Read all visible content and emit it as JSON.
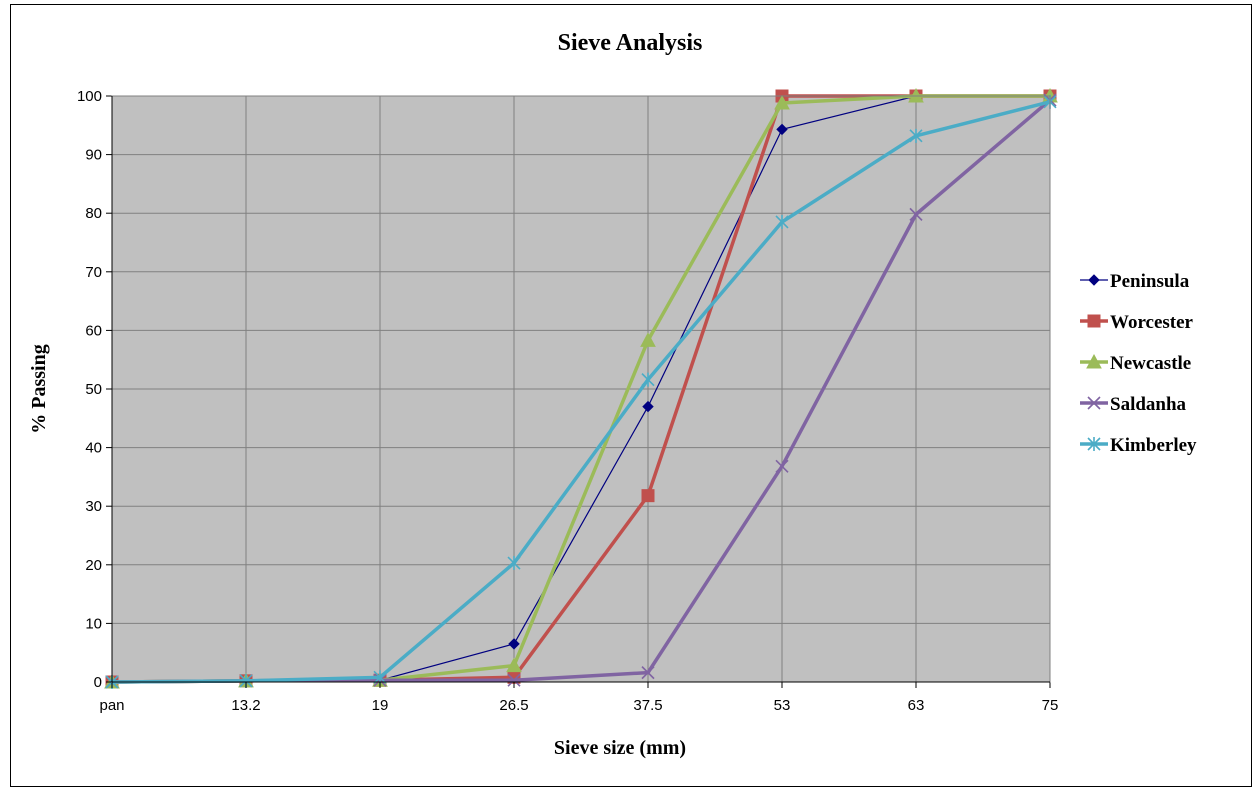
{
  "chart_data": {
    "type": "line",
    "title": "Sieve Analysis",
    "xlabel": "Sieve size (mm)",
    "ylabel": "% Passing",
    "categories": [
      "pan",
      "13.2",
      "19",
      "26.5",
      "37.5",
      "53",
      "63",
      "75"
    ],
    "ylim": [
      0,
      100
    ],
    "yticks": [
      0,
      10,
      20,
      30,
      40,
      50,
      60,
      70,
      80,
      90,
      100
    ],
    "grid": true,
    "legend_position": "right",
    "plot_background": "#C0C0C0",
    "series": [
      {
        "name": "Peninsula",
        "color": "#000080",
        "marker": "diamond",
        "values": [
          0,
          0.2,
          0.3,
          6.5,
          47,
          94.3,
          100,
          100
        ]
      },
      {
        "name": "Worcester",
        "color": "#C0504D",
        "marker": "square",
        "values": [
          0,
          0.2,
          0.3,
          0.8,
          31.8,
          100,
          100,
          100
        ]
      },
      {
        "name": "Newcastle",
        "color": "#9BBB59",
        "marker": "triangle",
        "values": [
          0,
          0.2,
          0.3,
          2.8,
          58.3,
          98.8,
          100,
          100
        ]
      },
      {
        "name": "Saldanha",
        "color": "#8064A2",
        "marker": "x",
        "values": [
          0,
          0.2,
          0.3,
          0.3,
          1.6,
          36.8,
          79.8,
          99.3
        ]
      },
      {
        "name": "Kimberley",
        "color": "#4BACC6",
        "marker": "star",
        "values": [
          0,
          0.2,
          0.8,
          20.3,
          51.6,
          78.5,
          93.2,
          99
        ]
      }
    ]
  }
}
